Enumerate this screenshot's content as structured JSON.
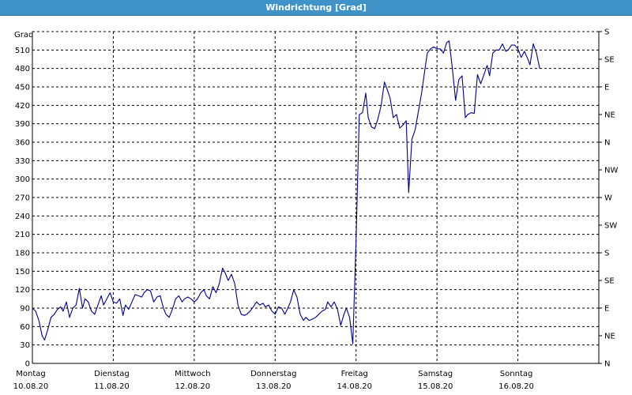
{
  "window": {
    "title": "Windrichtung [Grad]"
  },
  "colors": {
    "titlebar": "#3f93c8",
    "line": "#00008b",
    "grid": "#000000"
  },
  "chart_data": {
    "type": "line",
    "title": "Windrichtung [Grad]",
    "ylabel": "Grad",
    "ylim": [
      0,
      540
    ],
    "grid": true,
    "y_ticks": [
      0,
      30,
      60,
      90,
      120,
      150,
      180,
      210,
      240,
      270,
      300,
      330,
      360,
      390,
      420,
      450,
      480,
      510
    ],
    "right_axis_labels": [
      {
        "value": 0,
        "label": "N"
      },
      {
        "value": 45,
        "label": "NE"
      },
      {
        "value": 90,
        "label": "E"
      },
      {
        "value": 135,
        "label": "SE"
      },
      {
        "value": 180,
        "label": "S"
      },
      {
        "value": 225,
        "label": "SW"
      },
      {
        "value": 270,
        "label": "W"
      },
      {
        "value": 315,
        "label": "NW"
      },
      {
        "value": 360,
        "label": "N"
      },
      {
        "value": 405,
        "label": "NE"
      },
      {
        "value": 450,
        "label": "E"
      },
      {
        "value": 495,
        "label": "SE"
      },
      {
        "value": 540,
        "label": "S"
      }
    ],
    "x_categories": [
      {
        "day": "Montag",
        "date": "10.08.20"
      },
      {
        "day": "Dienstag",
        "date": "11.08.20"
      },
      {
        "day": "Mittwoch",
        "date": "12.08.20"
      },
      {
        "day": "Donnerstag",
        "date": "13.08.20"
      },
      {
        "day": "Freitag",
        "date": "14.08.20"
      },
      {
        "day": "Samstag",
        "date": "15.08.20"
      },
      {
        "day": "Sonntag",
        "date": "16.08.20"
      }
    ],
    "xlim_days": [
      0,
      7
    ],
    "series": [
      {
        "values": [
          [
            0.0,
            90
          ],
          [
            0.04,
            85
          ],
          [
            0.08,
            70
          ],
          [
            0.12,
            45
          ],
          [
            0.15,
            38
          ],
          [
            0.19,
            55
          ],
          [
            0.23,
            75
          ],
          [
            0.27,
            80
          ],
          [
            0.31,
            88
          ],
          [
            0.35,
            92
          ],
          [
            0.38,
            85
          ],
          [
            0.42,
            100
          ],
          [
            0.46,
            75
          ],
          [
            0.5,
            90
          ],
          [
            0.54,
            95
          ],
          [
            0.58,
            122
          ],
          [
            0.62,
            90
          ],
          [
            0.65,
            105
          ],
          [
            0.69,
            100
          ],
          [
            0.73,
            85
          ],
          [
            0.77,
            80
          ],
          [
            0.81,
            95
          ],
          [
            0.85,
            110
          ],
          [
            0.88,
            95
          ],
          [
            0.92,
            105
          ],
          [
            0.96,
            115
          ],
          [
            1.0,
            100
          ],
          [
            1.04,
            98
          ],
          [
            1.08,
            105
          ],
          [
            1.12,
            78
          ],
          [
            1.15,
            95
          ],
          [
            1.19,
            88
          ],
          [
            1.23,
            100
          ],
          [
            1.27,
            112
          ],
          [
            1.31,
            110
          ],
          [
            1.35,
            108
          ],
          [
            1.38,
            115
          ],
          [
            1.42,
            120
          ],
          [
            1.46,
            118
          ],
          [
            1.5,
            100
          ],
          [
            1.54,
            108
          ],
          [
            1.58,
            110
          ],
          [
            1.62,
            90
          ],
          [
            1.65,
            80
          ],
          [
            1.69,
            75
          ],
          [
            1.73,
            88
          ],
          [
            1.77,
            105
          ],
          [
            1.81,
            110
          ],
          [
            1.85,
            100
          ],
          [
            1.88,
            105
          ],
          [
            1.92,
            108
          ],
          [
            1.96,
            105
          ],
          [
            2.0,
            100
          ],
          [
            2.04,
            105
          ],
          [
            2.08,
            115
          ],
          [
            2.12,
            120
          ],
          [
            2.15,
            110
          ],
          [
            2.19,
            105
          ],
          [
            2.23,
            125
          ],
          [
            2.27,
            115
          ],
          [
            2.31,
            130
          ],
          [
            2.35,
            155
          ],
          [
            2.38,
            148
          ],
          [
            2.42,
            135
          ],
          [
            2.46,
            145
          ],
          [
            2.5,
            130
          ],
          [
            2.54,
            95
          ],
          [
            2.58,
            80
          ],
          [
            2.62,
            78
          ],
          [
            2.65,
            80
          ],
          [
            2.69,
            85
          ],
          [
            2.73,
            92
          ],
          [
            2.77,
            100
          ],
          [
            2.81,
            95
          ],
          [
            2.85,
            98
          ],
          [
            2.88,
            92
          ],
          [
            2.92,
            95
          ],
          [
            2.96,
            85
          ],
          [
            3.0,
            80
          ],
          [
            3.04,
            92
          ],
          [
            3.08,
            90
          ],
          [
            3.12,
            80
          ],
          [
            3.15,
            88
          ],
          [
            3.19,
            100
          ],
          [
            3.23,
            120
          ],
          [
            3.27,
            108
          ],
          [
            3.31,
            80
          ],
          [
            3.35,
            70
          ],
          [
            3.38,
            75
          ],
          [
            3.42,
            70
          ],
          [
            3.46,
            72
          ],
          [
            3.5,
            75
          ],
          [
            3.54,
            80
          ],
          [
            3.58,
            85
          ],
          [
            3.62,
            88
          ],
          [
            3.65,
            100
          ],
          [
            3.69,
            92
          ],
          [
            3.73,
            100
          ],
          [
            3.77,
            88
          ],
          [
            3.81,
            62
          ],
          [
            3.85,
            80
          ],
          [
            3.88,
            90
          ],
          [
            3.92,
            75
          ],
          [
            3.96,
            32
          ],
          [
            4.0,
            200
          ],
          [
            4.04,
            405
          ],
          [
            4.08,
            408
          ],
          [
            4.12,
            440
          ],
          [
            4.15,
            400
          ],
          [
            4.19,
            385
          ],
          [
            4.23,
            382
          ],
          [
            4.27,
            398
          ],
          [
            4.31,
            420
          ],
          [
            4.35,
            458
          ],
          [
            4.38,
            448
          ],
          [
            4.42,
            432
          ],
          [
            4.46,
            400
          ],
          [
            4.5,
            405
          ],
          [
            4.54,
            383
          ],
          [
            4.58,
            388
          ],
          [
            4.62,
            395
          ],
          [
            4.65,
            278
          ],
          [
            4.69,
            365
          ],
          [
            4.73,
            380
          ],
          [
            4.77,
            410
          ],
          [
            4.81,
            440
          ],
          [
            4.85,
            478
          ],
          [
            4.88,
            505
          ],
          [
            4.92,
            512
          ],
          [
            4.96,
            515
          ],
          [
            5.0,
            512
          ],
          [
            5.04,
            512
          ],
          [
            5.08,
            505
          ],
          [
            5.12,
            522
          ],
          [
            5.15,
            525
          ],
          [
            5.19,
            480
          ],
          [
            5.23,
            428
          ],
          [
            5.27,
            462
          ],
          [
            5.31,
            468
          ],
          [
            5.35,
            400
          ],
          [
            5.38,
            405
          ],
          [
            5.42,
            408
          ],
          [
            5.46,
            407
          ],
          [
            5.5,
            470
          ],
          [
            5.54,
            455
          ],
          [
            5.58,
            470
          ],
          [
            5.62,
            485
          ],
          [
            5.65,
            468
          ],
          [
            5.69,
            505
          ],
          [
            5.73,
            510
          ],
          [
            5.77,
            510
          ],
          [
            5.81,
            520
          ],
          [
            5.85,
            508
          ],
          [
            5.88,
            510
          ],
          [
            5.92,
            518
          ],
          [
            5.96,
            518
          ],
          [
            6.0,
            512
          ],
          [
            6.04,
            498
          ],
          [
            6.08,
            508
          ],
          [
            6.12,
            496
          ],
          [
            6.15,
            486
          ],
          [
            6.19,
            520
          ],
          [
            6.23,
            505
          ],
          [
            6.27,
            480
          ]
        ]
      }
    ]
  }
}
